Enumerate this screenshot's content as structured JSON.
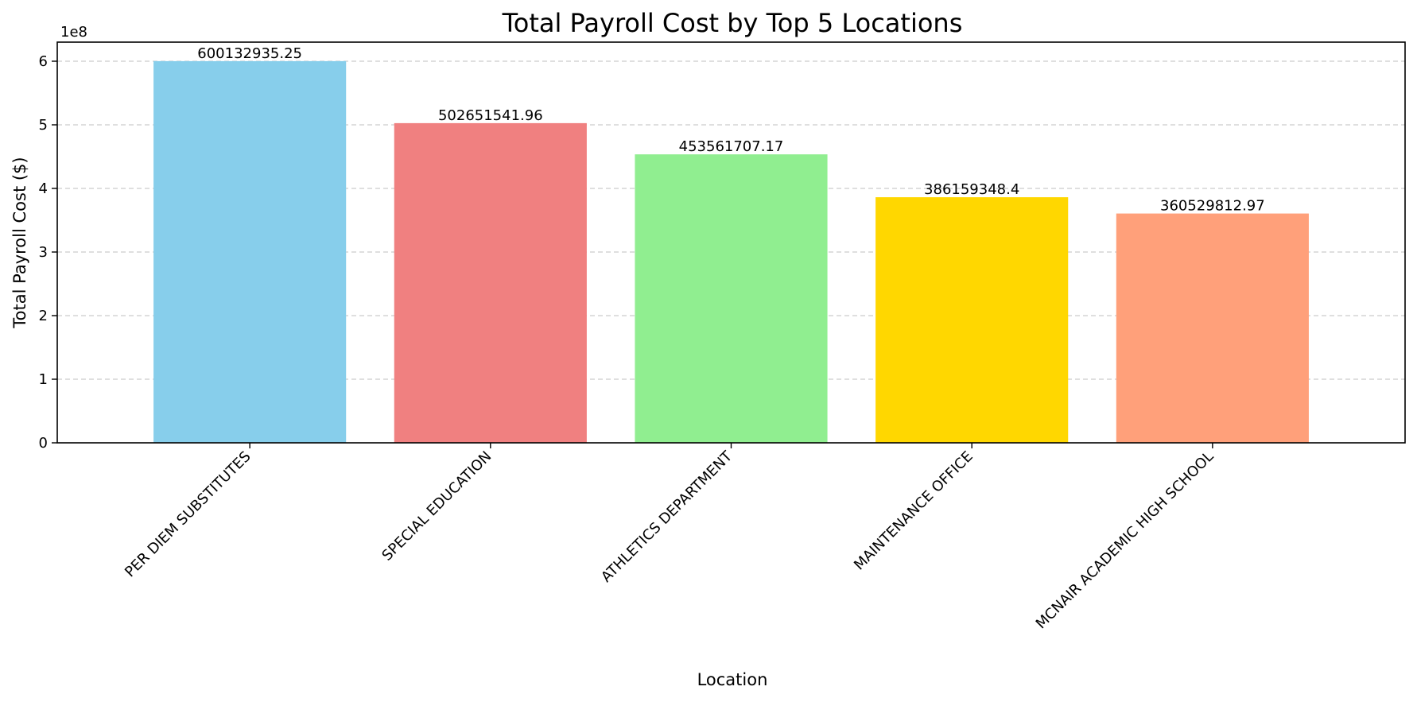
{
  "chart_data": {
    "type": "bar",
    "title": "Total Payroll Cost by Top 5 Locations",
    "xlabel": "Location",
    "ylabel": "Total Payroll Cost ($)",
    "y_scale_label": "1e8",
    "y_tick_labels": [
      "0",
      "1",
      "2",
      "3",
      "4",
      "5",
      "6"
    ],
    "y_tick_values": [
      0,
      100000000,
      200000000,
      300000000,
      400000000,
      500000000,
      600000000
    ],
    "ylim": [
      0,
      630000000
    ],
    "grid": "horizontal dashed",
    "categories": [
      "PER DIEM SUBSTITUTES",
      "SPECIAL EDUCATION",
      "ATHLETICS DEPARTMENT",
      "MAINTENANCE OFFICE",
      "MCNAIR ACADEMIC HIGH SCHOOL"
    ],
    "values": [
      600132935.25,
      502651541.96,
      453561707.17,
      386159348.4,
      360529812.97
    ],
    "value_labels": [
      "600132935.25",
      "502651541.96",
      "453561707.17",
      "386159348.4",
      "360529812.97"
    ],
    "colors": [
      "#87CEEB",
      "#F08080",
      "#90EE90",
      "#FFD700",
      "#FFA07A"
    ]
  }
}
